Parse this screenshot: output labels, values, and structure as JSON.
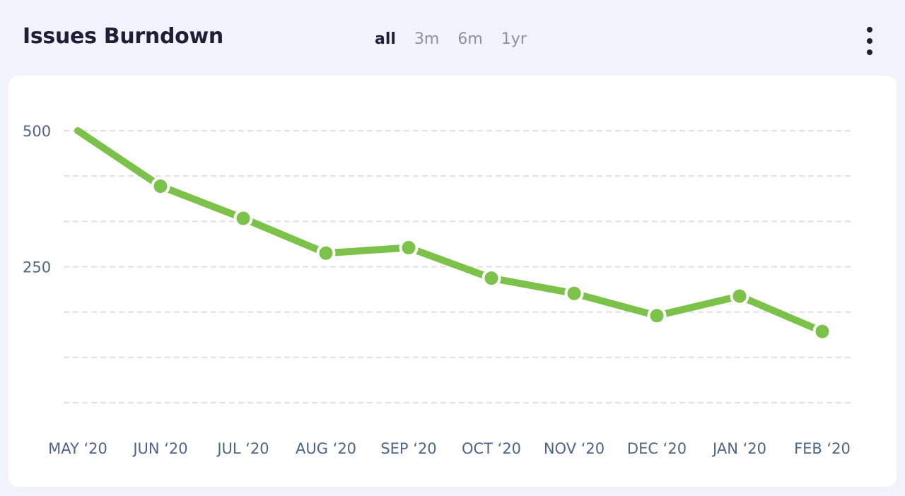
{
  "header": {
    "title": "Issues Burndown",
    "ranges": [
      {
        "label": "all",
        "active": true
      },
      {
        "label": "3m",
        "active": false
      },
      {
        "label": "6m",
        "active": false
      },
      {
        "label": "1yr",
        "active": false
      }
    ],
    "menu_icon": "more-vertical-icon"
  },
  "chart_data": {
    "type": "line",
    "title": "Issues Burndown",
    "categories": [
      "MAY ‘20",
      "JUN ‘20",
      "JUL ‘20",
      "AUG ‘20",
      "SEP ‘20",
      "OCT ‘20",
      "NOV ‘20",
      "DEC ‘20",
      "JAN ‘20",
      "FEB ‘20"
    ],
    "series": [
      {
        "name": "Issues",
        "values": [
          500,
          398,
          339,
          275,
          285,
          229,
          201,
          160,
          196,
          131
        ],
        "color": "#7bc14a"
      }
    ],
    "yticks": [
      {
        "value": 500,
        "label": "500"
      },
      {
        "value": 250,
        "label": "250"
      }
    ],
    "gridlines": [
      0,
      83.3,
      166.7,
      250,
      333.3,
      416.7,
      500
    ],
    "ylim": [
      0,
      500
    ],
    "grid": true,
    "xlabel": "",
    "ylabel": ""
  }
}
